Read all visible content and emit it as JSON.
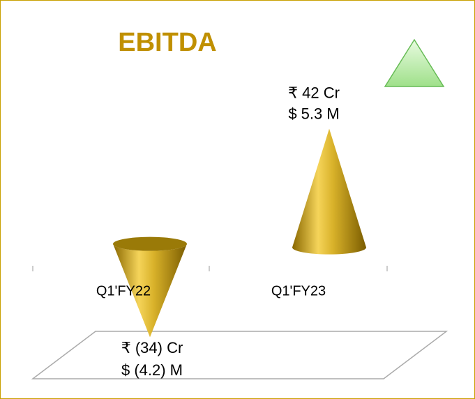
{
  "chart_data": {
    "type": "cone",
    "title": "EBITDA",
    "categories": [
      "Q1'FY22",
      "Q1'FY23"
    ],
    "values": [
      -34,
      42
    ],
    "value_labels": [
      "₹ (34) Cr",
      "₹ 42 Cr"
    ],
    "usd_values": [
      -4.2,
      5.3
    ],
    "usd_value_labels": [
      "$ (4.2) M",
      "$ 5.3 M"
    ],
    "color": "#c9a10e",
    "ylim": [
      -40,
      50
    ]
  }
}
